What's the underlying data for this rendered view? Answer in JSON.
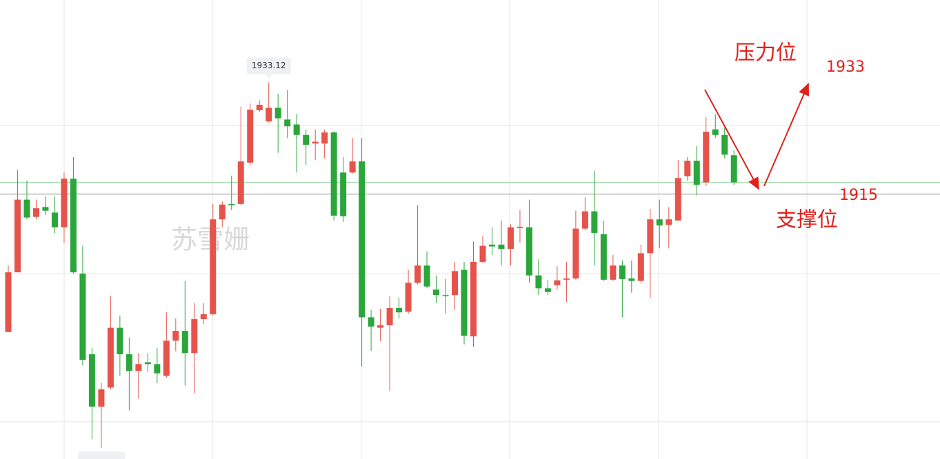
{
  "chart_data": {
    "type": "candlestick",
    "watermark": "苏雪姗",
    "up_color": "#e5534b",
    "down_color": "#2aa63a",
    "ylim": [
      1872,
      1946.5
    ],
    "current_price": 1916.9,
    "current_price_color": "#8fd49a",
    "resistance": {
      "label": "压力位",
      "value": 1933
    },
    "support": {
      "label": "支撑位",
      "value": 1915
    },
    "open": [
      1892.6,
      1902.3,
      1914.1,
      1911.3,
      1912.9,
      1912.0,
      1909.6,
      1917.5,
      1902.1,
      1889.0,
      1880.5,
      1883.6,
      1893.3,
      1889.0,
      1886.3,
      1887.7,
      1887.4,
      1885.5,
      1891.2,
      1892.8,
      1889.2,
      1894.7,
      1895.5,
      1910.9,
      1913.4,
      1913.4,
      1920.1,
      1928.6,
      1926.8,
      1929.0,
      1927.1,
      1926.3,
      1924.6,
      1923.2,
      1923.2,
      1925.0,
      1918.5,
      1918.5,
      1920.3,
      1895.0,
      1893.3,
      1893.7,
      1896.5,
      1895.9,
      1900.6,
      1903.4,
      1899.5,
      1898.6,
      1898.6,
      1902.7,
      1891.9,
      1904.0,
      1906.8,
      1906.8,
      1906.1,
      1909.5,
      1909.6,
      1901.8,
      1899.7,
      1900.2,
      1901.1,
      1901.3,
      1909.4,
      1912.2,
      1908.5,
      1901.1,
      1903.4,
      1901.3,
      1900.9,
      1905.4,
      1910.9,
      1910.0,
      1910.7,
      1917.9,
      1920.4,
      1916.9,
      1925.5,
      1924.6,
      1921.3
    ],
    "high": [
      1903.4,
      1918.9,
      1917.2,
      1914.1,
      1914.6,
      1914.6,
      1918.5,
      1921.0,
      1906.6,
      1890.0,
      1884.4,
      1898.4,
      1895.3,
      1891.7,
      1889.2,
      1889.2,
      1890.0,
      1895.8,
      1894.8,
      1900.9,
      1897.3,
      1897.3,
      1913.4,
      1913.8,
      1918.0,
      1929.2,
      1929.7,
      1930.2,
      1933.12,
      1931.3,
      1931.9,
      1928.0,
      1925.5,
      1925.5,
      1925.5,
      1925.2,
      1921.0,
      1924.1,
      1924.1,
      1896.2,
      1896.4,
      1898.4,
      1898.2,
      1902.7,
      1913.2,
      1905.7,
      1901.8,
      1901.2,
      1904.0,
      1904.0,
      1907.3,
      1908.2,
      1909.6,
      1910.7,
      1910.1,
      1912.4,
      1914.1,
      1904.4,
      1901.1,
      1903.3,
      1904.0,
      1912.3,
      1914.5,
      1918.8,
      1910.7,
      1905.1,
      1904.2,
      1904.2,
      1906.8,
      1912.6,
      1914.1,
      1912.9,
      1920.5,
      1921.0,
      1922.8,
      1927.5,
      1928.0,
      1925.8,
      1922.1
    ],
    "low": [
      1892.6,
      1902.3,
      1910.9,
      1910.9,
      1911.6,
      1908.7,
      1907.1,
      1902.1,
      1887.2,
      1875.2,
      1873.8,
      1883.3,
      1885.5,
      1879.9,
      1881.8,
      1886.1,
      1884.3,
      1885.2,
      1889.5,
      1883.9,
      1882.7,
      1893.9,
      1895.3,
      1909.6,
      1912.4,
      1913.2,
      1919.7,
      1928.3,
      1926.6,
      1921.7,
      1924.1,
      1918.5,
      1919.7,
      1920.5,
      1920.8,
      1910.7,
      1910.5,
      1918.3,
      1887.0,
      1889.5,
      1891.1,
      1883.0,
      1894.8,
      1895.6,
      1900.4,
      1899.7,
      1897.3,
      1895.6,
      1896.2,
      1890.6,
      1890.2,
      1903.8,
      1905.1,
      1903.4,
      1903.4,
      1907.1,
      1900.6,
      1898.6,
      1898.6,
      1899.5,
      1897.5,
      1901.1,
      1909.1,
      1903.4,
      1900.9,
      1900.9,
      1895.0,
      1899.0,
      1900.6,
      1898.1,
      1906.2,
      1906.2,
      1910.7,
      1917.2,
      1914.8,
      1916.3,
      1924.1,
      1920.8,
      1916.5
    ],
    "close": [
      1902.3,
      1914.1,
      1911.2,
      1912.7,
      1912.3,
      1909.6,
      1917.5,
      1902.3,
      1888.1,
      1880.5,
      1883.3,
      1893.3,
      1889.0,
      1886.3,
      1887.4,
      1887.4,
      1885.9,
      1891.2,
      1892.8,
      1889.2,
      1894.7,
      1895.5,
      1910.9,
      1913.3,
      1913.2,
      1920.3,
      1928.7,
      1929.5,
      1929.0,
      1927.3,
      1926.0,
      1924.6,
      1923.0,
      1923.5,
      1925.0,
      1911.5,
      1911.4,
      1920.3,
      1895.0,
      1893.5,
      1893.7,
      1896.5,
      1895.8,
      1900.6,
      1903.4,
      1900.0,
      1898.6,
      1898.5,
      1902.5,
      1892.0,
      1904.0,
      1906.6,
      1906.5,
      1906.1,
      1909.6,
      1909.7,
      1901.8,
      1899.7,
      1899.1,
      1901.0,
      1901.3,
      1909.4,
      1912.2,
      1908.7,
      1901.1,
      1903.4,
      1901.2,
      1900.9,
      1905.4,
      1910.9,
      1909.9,
      1910.9,
      1917.6,
      1920.4,
      1916.5,
      1925.1,
      1924.6,
      1921.4,
      1916.9
    ]
  }
}
